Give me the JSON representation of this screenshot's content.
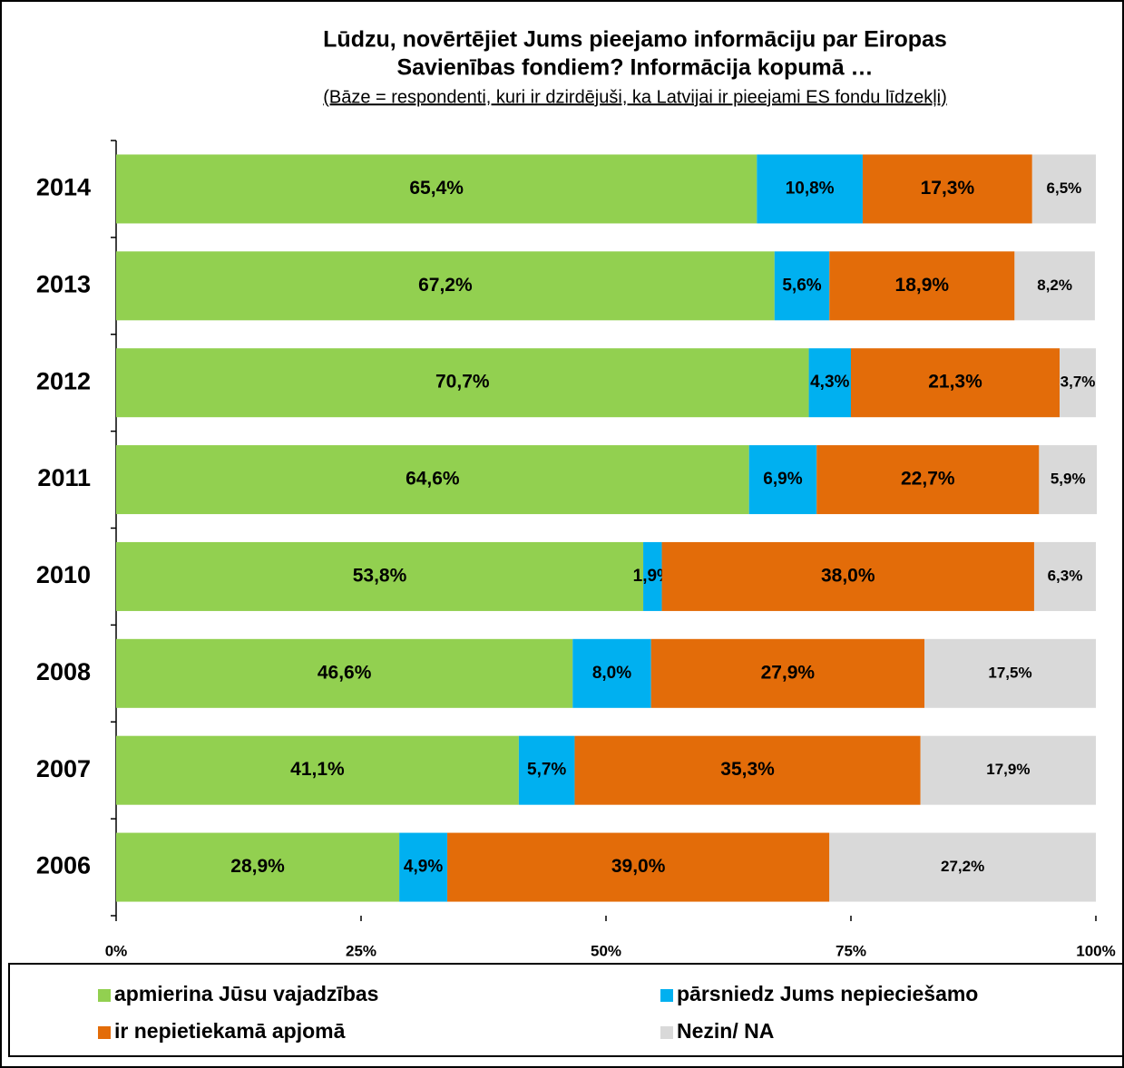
{
  "chart_data": {
    "type": "stacked_bar_horizontal",
    "title": [
      "Lūdzu, novērtējiet Jums pieejamo informāciju par Eiropas",
      "Savienības fondiem? Informācija kopumā …"
    ],
    "subtitle": "(Bāze = respondenti, kuri ir dzirdējuši, ka Latvijai ir pieejami ES fondu līdzekļi)",
    "categories": [
      "2014",
      "2013",
      "2012",
      "2011",
      "2010",
      "2008",
      "2007",
      "2006"
    ],
    "series": [
      {
        "name": "apmierina Jūsu vajadzības",
        "color": "#92d050",
        "values": [
          65.4,
          67.2,
          70.7,
          64.6,
          53.8,
          46.6,
          41.1,
          28.9
        ],
        "value_labels": [
          "65,4%",
          "67,2%",
          "70,7%",
          "64,6%",
          "53,8%",
          "46,6%",
          "41,1%",
          "28,9%"
        ]
      },
      {
        "name": "pārsniedz Jums nepieciešamo",
        "color": "#00b0f0",
        "values": [
          10.8,
          5.6,
          4.3,
          6.9,
          1.9,
          8.0,
          5.7,
          4.9
        ],
        "value_labels": [
          "10,8%",
          "5,6%",
          "4,3%",
          "6,9%",
          "1,9%",
          "8,0%",
          "5,7%",
          "4,9%"
        ]
      },
      {
        "name": "ir nepietiekamā apjomā",
        "color": "#e36c09",
        "values": [
          17.3,
          18.9,
          21.3,
          22.7,
          38.0,
          27.9,
          35.3,
          39.0
        ],
        "value_labels": [
          "17,3%",
          "18,9%",
          "21,3%",
          "22,7%",
          "38,0%",
          "27,9%",
          "35,3%",
          "39,0%"
        ]
      },
      {
        "name": "Nezin/ NA",
        "color": "#d9d9d9",
        "values": [
          6.5,
          8.2,
          3.7,
          5.9,
          6.3,
          17.5,
          17.9,
          27.2
        ],
        "value_labels": [
          "6,5%",
          "8,2%",
          "3,7%",
          "5,9%",
          "6,3%",
          "17,5%",
          "17,9%",
          "27,2%"
        ]
      }
    ],
    "xlim": [
      0,
      100
    ],
    "xticks": [
      {
        "value": 0,
        "label": "0%"
      },
      {
        "value": 25,
        "label": "25%"
      },
      {
        "value": 50,
        "label": "50%"
      },
      {
        "value": 75,
        "label": "75%"
      },
      {
        "value": 100,
        "label": "100%"
      }
    ]
  }
}
